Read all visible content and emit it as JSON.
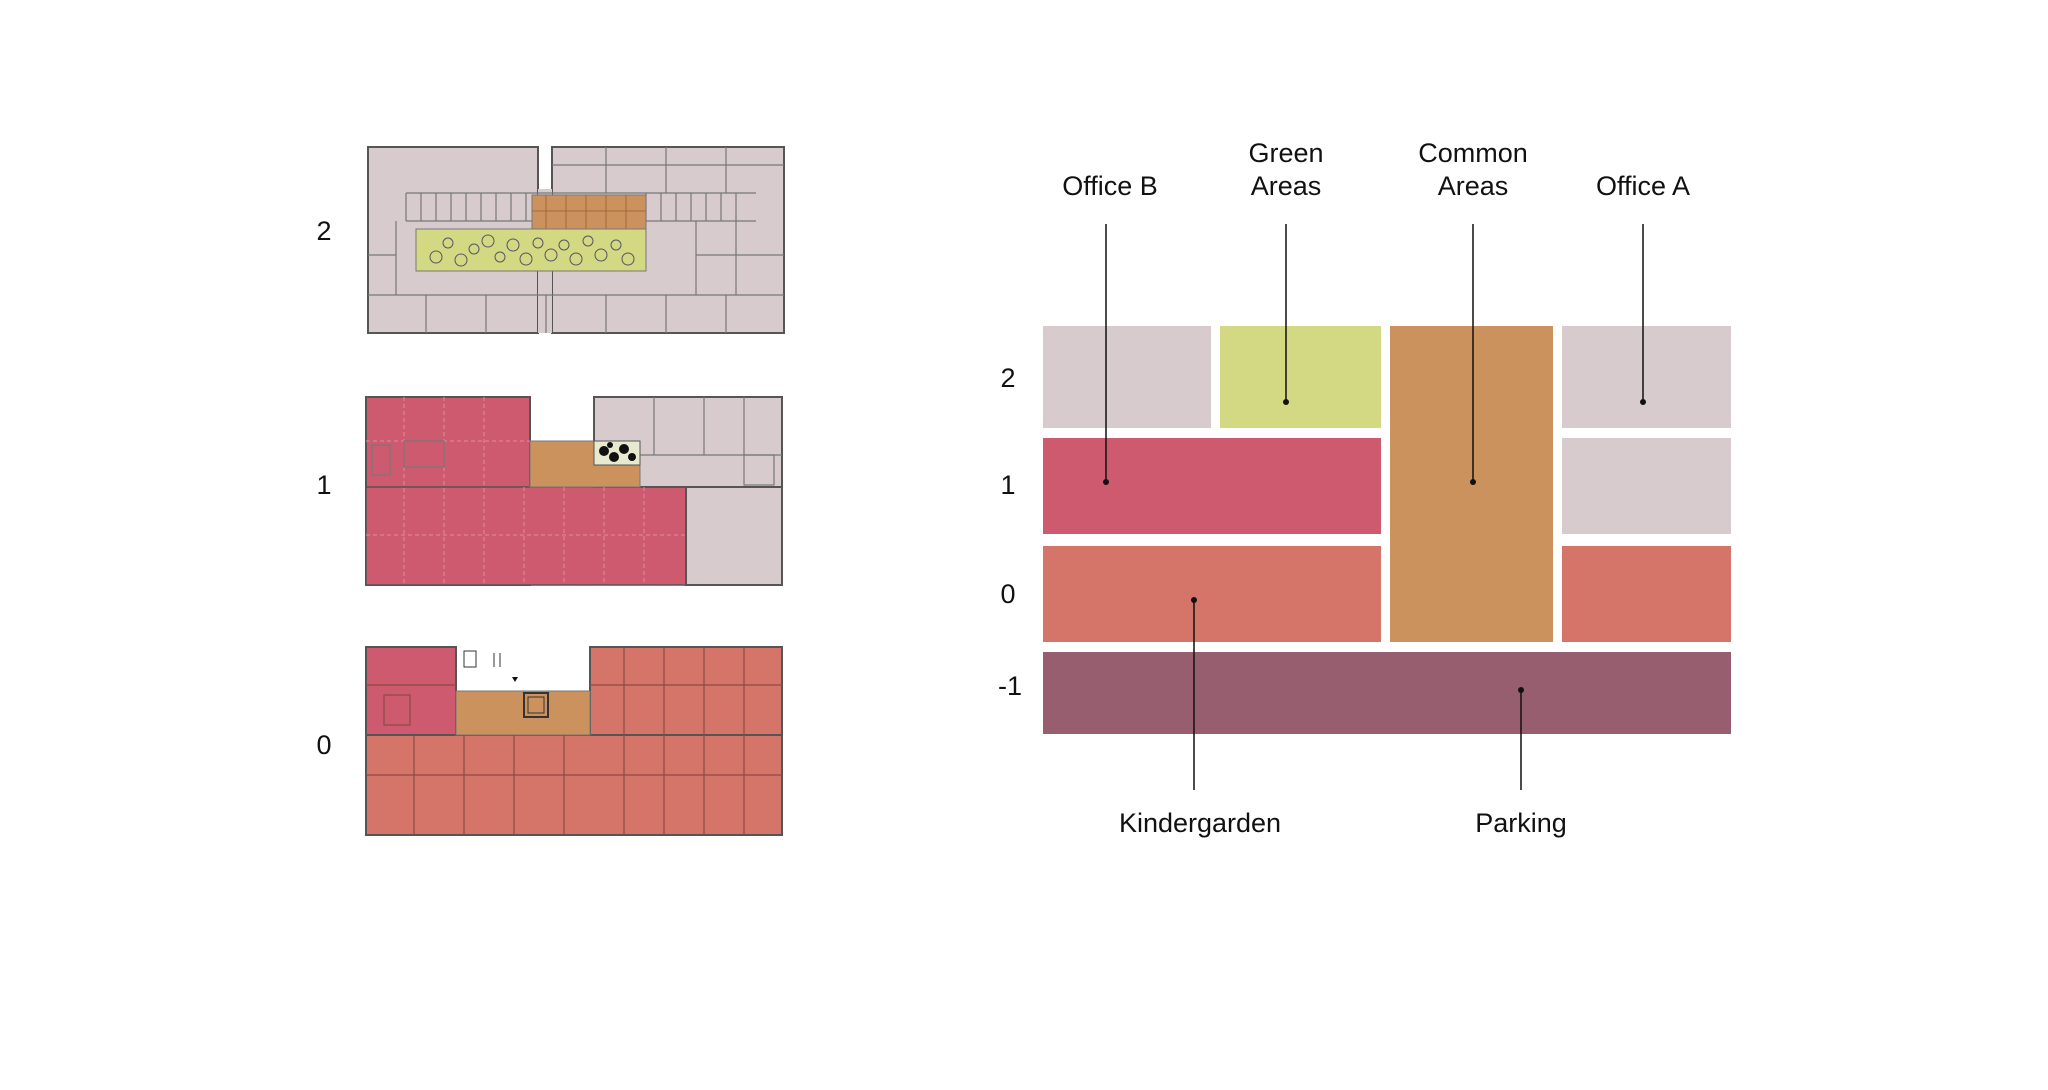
{
  "colors": {
    "office_b": "#d7cbce",
    "office_a": "#d7cbce",
    "green_areas": "#d3d982",
    "common_areas": "#cc925e",
    "office_b_floor1": "#cd5a6f",
    "kindergarden": "#d57569",
    "parking": "#965e6e",
    "line": "#111111"
  },
  "plans": {
    "floor_labels": [
      "2",
      "1",
      "0"
    ]
  },
  "diagram": {
    "labels": {
      "office_b": "Office B",
      "green_areas_line1": "Green",
      "green_areas_line2": "Areas",
      "common_areas_line1": "Common",
      "common_areas_line2": "Areas",
      "office_a": "Office A",
      "kindergarden": "Kindergarden",
      "parking": "Parking"
    },
    "levels": [
      "2",
      "1",
      "0",
      "-1"
    ]
  }
}
